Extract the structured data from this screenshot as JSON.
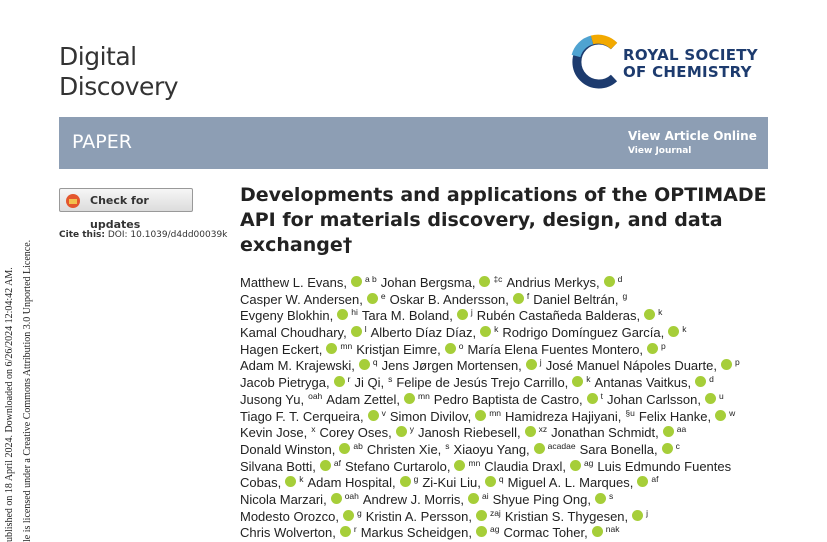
{
  "header": {
    "journal_line1": "Digital",
    "journal_line2": "Discovery",
    "publisher_line1": "ROYAL SOCIETY",
    "publisher_line2": "OF CHEMISTRY",
    "banner": "PAPER",
    "view_article": "View Article Online",
    "view_journal": "View Journal"
  },
  "sidebar": {
    "check_updates": "Check for updates",
    "cite_label": "Cite this:",
    "cite_doi": "DOI: 10.1039/d4dd00039k"
  },
  "margin": {
    "line1": "ublished on 18 April 2024. Downloaded on 6/26/2024 12:04:42 AM.",
    "line2": "le is licensed under a Creative Commons Attribution 3.0 Unported Licence."
  },
  "article": {
    "title": "Developments and applications of the OPTIMADE API for materials discovery, design, and data exchange†",
    "authors": [
      [
        {
          "text": "Matthew L. Evans,",
          "orcid": true,
          "sup": "a b"
        },
        {
          "text": "Johan Bergsma,",
          "orcid": true,
          "sup": "‡c"
        },
        {
          "text": "Andrius Merkys,",
          "orcid": true,
          "sup": "d"
        }
      ],
      [
        {
          "text": "Casper W. Andersen,",
          "orcid": true,
          "sup": "e"
        },
        {
          "text": "Oskar B. Andersson,",
          "orcid": true,
          "sup": "f"
        },
        {
          "text": "Daniel Beltrán,",
          "orcid": false,
          "sup": "g"
        }
      ],
      [
        {
          "text": "Evgeny Blokhin,",
          "orcid": true,
          "sup": "hi"
        },
        {
          "text": "Tara M. Boland,",
          "orcid": true,
          "sup": "j"
        },
        {
          "text": "Rubén Castañeda Balderas,",
          "orcid": true,
          "sup": "k"
        }
      ],
      [
        {
          "text": "Kamal Choudhary,",
          "orcid": true,
          "sup": "l"
        },
        {
          "text": "Alberto Díaz Díaz,",
          "orcid": true,
          "sup": "k"
        },
        {
          "text": "Rodrigo Domínguez García,",
          "orcid": true,
          "sup": "k"
        }
      ],
      [
        {
          "text": "Hagen Eckert,",
          "orcid": true,
          "sup": "mn"
        },
        {
          "text": "Kristjan Eimre,",
          "orcid": true,
          "sup": "o"
        },
        {
          "text": "María Elena Fuentes Montero,",
          "orcid": true,
          "sup": "p"
        }
      ],
      [
        {
          "text": "Adam M. Krajewski,",
          "orcid": true,
          "sup": "q"
        },
        {
          "text": "Jens Jørgen Mortensen,",
          "orcid": true,
          "sup": "j"
        },
        {
          "text": "José Manuel Nápoles Duarte,",
          "orcid": true,
          "sup": "p"
        }
      ],
      [
        {
          "text": "Jacob Pietryga,",
          "orcid": true,
          "sup": "r"
        },
        {
          "text": "Ji Qi,",
          "orcid": false,
          "sup": "s"
        },
        {
          "text": "Felipe de Jesús Trejo Carrillo,",
          "orcid": true,
          "sup": "k"
        },
        {
          "text": "Antanas Vaitkus,",
          "orcid": true,
          "sup": "d"
        }
      ],
      [
        {
          "text": "Jusong Yu,",
          "orcid": false,
          "sup": "oah"
        },
        {
          "text": "Adam Zettel,",
          "orcid": true,
          "sup": "mn"
        },
        {
          "text": "Pedro Baptista de Castro,",
          "orcid": true,
          "sup": "t"
        },
        {
          "text": "Johan Carlsson,",
          "orcid": true,
          "sup": "u"
        }
      ],
      [
        {
          "text": "Tiago F. T. Cerqueira,",
          "orcid": true,
          "sup": "v"
        },
        {
          "text": "Simon Divilov,",
          "orcid": true,
          "sup": "mn"
        },
        {
          "text": "Hamidreza Hajiyani,",
          "orcid": false,
          "sup": "§u"
        },
        {
          "text": "Felix Hanke,",
          "orcid": true,
          "sup": "w"
        }
      ],
      [
        {
          "text": "Kevin Jose,",
          "orcid": false,
          "sup": "x"
        },
        {
          "text": "Corey Oses,",
          "orcid": true,
          "sup": "y"
        },
        {
          "text": "Janosh Riebesell,",
          "orcid": true,
          "sup": "xz"
        },
        {
          "text": "Jonathan Schmidt,",
          "orcid": true,
          "sup": "aa"
        }
      ],
      [
        {
          "text": "Donald Winston,",
          "orcid": true,
          "sup": "ab"
        },
        {
          "text": "Christen Xie,",
          "orcid": false,
          "sup": "s"
        },
        {
          "text": "Xiaoyu Yang,",
          "orcid": true,
          "sup": "acadae"
        },
        {
          "text": "Sara Bonella,",
          "orcid": true,
          "sup": "c"
        }
      ],
      [
        {
          "text": "Silvana Botti,",
          "orcid": true,
          "sup": "af"
        },
        {
          "text": "Stefano Curtarolo,",
          "orcid": true,
          "sup": "mn"
        },
        {
          "text": "Claudia Draxl,",
          "orcid": true,
          "sup": "ag"
        },
        {
          "text": "Luis Edmundo Fuentes",
          "orcid": false
        }
      ],
      [
        {
          "text": "Cobas,",
          "orcid": true,
          "sup": "k"
        },
        {
          "text": "Adam Hospital,",
          "orcid": true,
          "sup": "g"
        },
        {
          "text": "Zi-Kui Liu,",
          "orcid": true,
          "sup": "q"
        },
        {
          "text": "Miguel A. L. Marques,",
          "orcid": true,
          "sup": "af"
        }
      ],
      [
        {
          "text": "Nicola Marzari,",
          "orcid": true,
          "sup": "oah"
        },
        {
          "text": "Andrew J. Morris,",
          "orcid": true,
          "sup": "ai"
        },
        {
          "text": "Shyue Ping Ong,",
          "orcid": true,
          "sup": "s"
        }
      ],
      [
        {
          "text": "Modesto Orozco,",
          "orcid": true,
          "sup": "g"
        },
        {
          "text": "Kristin A. Persson,",
          "orcid": true,
          "sup": "zaj"
        },
        {
          "text": "Kristian S. Thygesen,",
          "orcid": true,
          "sup": "j"
        }
      ],
      [
        {
          "text": "Chris Wolverton,",
          "orcid": true,
          "sup": "r"
        },
        {
          "text": "Markus Scheidgen,",
          "orcid": true,
          "sup": "ag"
        },
        {
          "text": "Cormac Toher,",
          "orcid": true,
          "sup": "nak"
        }
      ]
    ]
  }
}
